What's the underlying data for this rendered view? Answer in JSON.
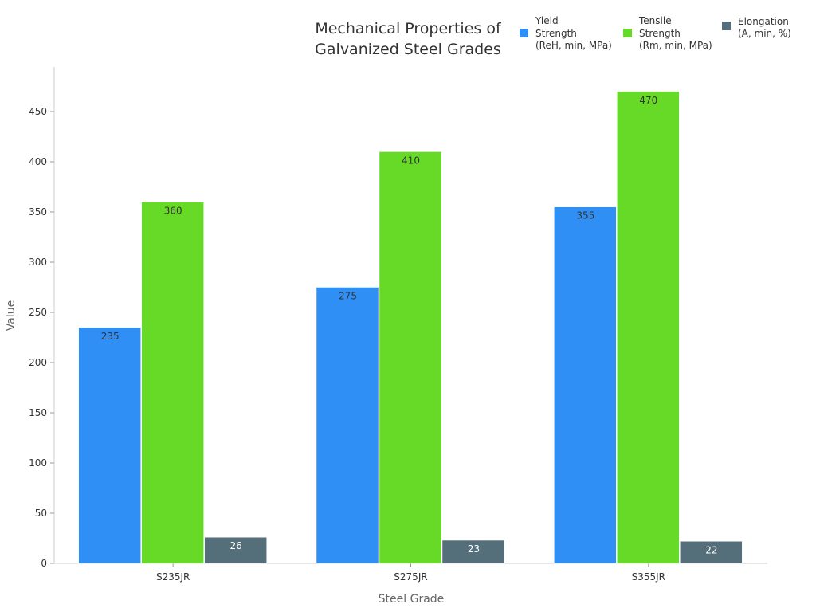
{
  "chart_data": {
    "type": "bar",
    "title": [
      "Mechanical Properties of",
      "Galvanized Steel Grades"
    ],
    "xlabel": "Steel Grade",
    "ylabel": "Value",
    "ylim": [
      0,
      495
    ],
    "yticks": [
      0,
      50,
      100,
      150,
      200,
      250,
      300,
      350,
      400,
      450
    ],
    "categories": [
      "S235JR",
      "S275JR",
      "S355JR"
    ],
    "legend_position": "top-right",
    "series": [
      {
        "name": [
          "Yield",
          "Strength",
          "(ReH, min, MPa)"
        ],
        "color": "#2f8ff5",
        "label_color": "#333333",
        "values": [
          235,
          275,
          355
        ]
      },
      {
        "name": [
          "Tensile",
          "Strength",
          "(Rm, min, MPa)"
        ],
        "color": "#66da26",
        "label_color": "#333333",
        "values": [
          360,
          410,
          470
        ]
      },
      {
        "name": [
          "Elongation",
          "(A, min, %)"
        ],
        "color": "#546e7a",
        "label_color": "#ffffff",
        "values": [
          26,
          23,
          22
        ]
      }
    ]
  }
}
